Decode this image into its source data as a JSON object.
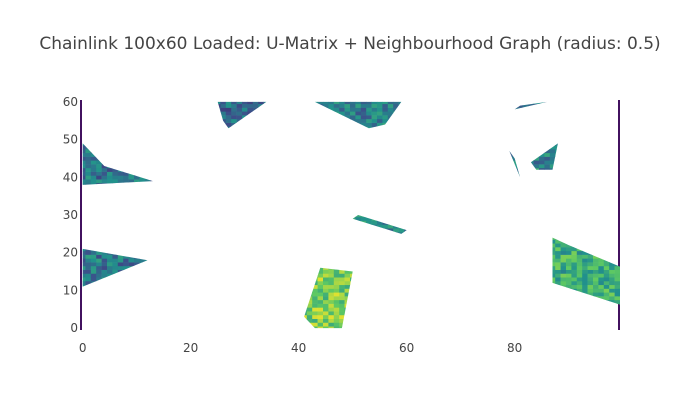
{
  "title": "Chainlink 100x60 Loaded: U-Matrix + Neighbourhood Graph (radius: 0.5)",
  "chart_data": {
    "type": "heatmap",
    "grid_width": 100,
    "grid_height": 60,
    "xlim": [
      -0.5,
      99.5
    ],
    "ylim": [
      -0.5,
      60.5
    ],
    "x_ticks": [
      0,
      20,
      40,
      60,
      80
    ],
    "y_ticks": [
      0,
      10,
      20,
      30,
      40,
      50,
      60
    ],
    "background_color": "#e5ecf6",
    "gridline_color": "#ffffff",
    "colorscale": [
      "#440154",
      "#3b528b",
      "#21918c",
      "#5ec962",
      "#fde725"
    ],
    "overlay_color": "#ffffff",
    "visible_regions": [
      {
        "name": "top-mid-left",
        "points": [
          [
            25,
            60
          ],
          [
            34,
            60
          ],
          [
            27,
            53
          ],
          [
            26,
            55
          ]
        ],
        "value": 0.35
      },
      {
        "name": "top-mid",
        "points": [
          [
            43,
            60
          ],
          [
            59,
            60
          ],
          [
            56,
            54
          ],
          [
            53,
            53
          ]
        ],
        "value": 0.42
      },
      {
        "name": "top-right",
        "points": [
          [
            80,
            58
          ],
          [
            86,
            60
          ],
          [
            81,
            59
          ]
        ],
        "value": 0.35
      },
      {
        "name": "right-upper-cluster",
        "points": [
          [
            83,
            44
          ],
          [
            88,
            49
          ],
          [
            87,
            42
          ],
          [
            84,
            42
          ]
        ],
        "value": 0.45
      },
      {
        "name": "right-upper-spike",
        "points": [
          [
            79,
            47
          ],
          [
            80,
            45
          ],
          [
            81,
            40
          ]
        ],
        "value": 0.4
      },
      {
        "name": "left-upper",
        "points": [
          [
            0,
            49
          ],
          [
            4,
            43
          ],
          [
            13,
            39
          ],
          [
            0,
            38
          ]
        ],
        "value": 0.38
      },
      {
        "name": "left-lower",
        "points": [
          [
            0,
            21
          ],
          [
            12,
            18
          ],
          [
            0,
            11
          ]
        ],
        "value": 0.4
      },
      {
        "name": "right-lower",
        "points": [
          [
            87,
            24
          ],
          [
            90,
            22
          ],
          [
            100,
            16
          ],
          [
            100,
            6
          ],
          [
            87,
            12
          ]
        ],
        "value": 0.62
      },
      {
        "name": "bottom-mid",
        "points": [
          [
            44,
            16
          ],
          [
            50,
            15
          ],
          [
            48,
            0
          ],
          [
            43,
            0
          ],
          [
            41,
            3
          ]
        ],
        "value": 0.78
      },
      {
        "name": "center-sliver",
        "points": [
          [
            50,
            29
          ],
          [
            59,
            25
          ],
          [
            60,
            26
          ],
          [
            51,
            30
          ]
        ],
        "value": 0.45
      }
    ]
  }
}
